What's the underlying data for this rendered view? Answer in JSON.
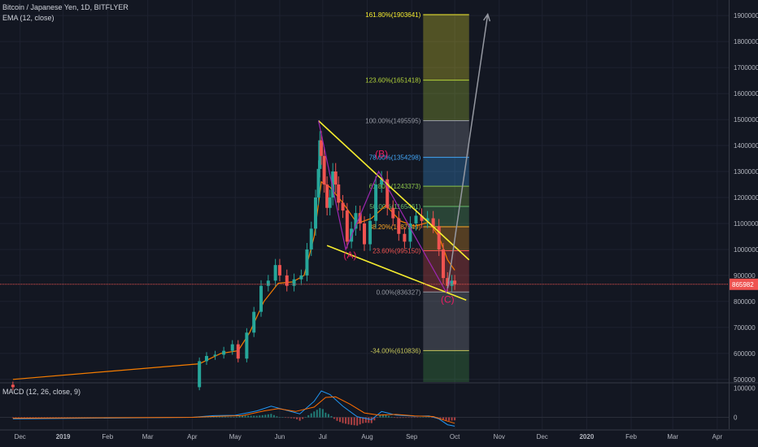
{
  "header": {
    "symbol_line": "Bitcoin / Japanese Yen, 1D, BITFLYER",
    "indicator": "EMA (12, close)",
    "macd_label": "MACD (12, 26, close, 9)"
  },
  "price_axis": {
    "ticks": [
      {
        "value": 1900000,
        "label": "1900000"
      },
      {
        "value": 1800000,
        "label": "1800000"
      },
      {
        "value": 1700000,
        "label": "1700000"
      },
      {
        "value": 1600000,
        "label": "1600000"
      },
      {
        "value": 1500000,
        "label": "1500000"
      },
      {
        "value": 1400000,
        "label": "1400000"
      },
      {
        "value": 1300000,
        "label": "1300000"
      },
      {
        "value": 1200000,
        "label": "1200000"
      },
      {
        "value": 1100000,
        "label": "1100000"
      },
      {
        "value": 1000000,
        "label": "1000000"
      },
      {
        "value": 900000,
        "label": "900000"
      },
      {
        "value": 800000,
        "label": "800000"
      },
      {
        "value": 700000,
        "label": "700000"
      },
      {
        "value": 600000,
        "label": "600000"
      },
      {
        "value": 500000,
        "label": "500000"
      }
    ],
    "last_price": {
      "value": 865982,
      "label": "865982",
      "color": "#ef5350"
    }
  },
  "macd_axis": {
    "ticks": [
      {
        "value": 100000,
        "label": "100000"
      },
      {
        "value": 0,
        "label": "0"
      }
    ]
  },
  "time_axis": [
    {
      "day": -30,
      "label": "Dec",
      "bold": false
    },
    {
      "day": 0,
      "label": "2019",
      "bold": true
    },
    {
      "day": 31,
      "label": "Feb",
      "bold": false
    },
    {
      "day": 59,
      "label": "Mar",
      "bold": false
    },
    {
      "day": 90,
      "label": "Apr",
      "bold": false
    },
    {
      "day": 120,
      "label": "May",
      "bold": false
    },
    {
      "day": 151,
      "label": "Jun",
      "bold": false
    },
    {
      "day": 181,
      "label": "Jul",
      "bold": false
    },
    {
      "day": 212,
      "label": "Aug",
      "bold": false
    },
    {
      "day": 243,
      "label": "Sep",
      "bold": false
    },
    {
      "day": 273,
      "label": "Oct",
      "bold": false
    },
    {
      "day": 304,
      "label": "Nov",
      "bold": false
    },
    {
      "day": 334,
      "label": "Dec",
      "bold": false
    },
    {
      "day": 365,
      "label": "2020",
      "bold": true
    },
    {
      "day": 396,
      "label": "Feb",
      "bold": false
    },
    {
      "day": 425,
      "label": "Mar",
      "bold": false
    },
    {
      "day": 456,
      "label": "Apr",
      "bold": false
    }
  ],
  "colors": {
    "background": "#131722",
    "grid": "#1e2230",
    "up": "#26a69a",
    "down": "#ef5350",
    "ema": "#f57c00",
    "trendline": "#f5ec2e",
    "wave": "#9c27b0",
    "wave_label": "#e91e63",
    "arrow": "#9598a1",
    "macd_line": "#2196f3",
    "signal_line": "#ff6d00"
  },
  "chart_data": {
    "type": "candlestick",
    "x_unit": "days since 2019-01-01",
    "ylim": [
      490000,
      1960000
    ],
    "candles": [
      {
        "day": -35,
        "close": 470000
      },
      {
        "day": 95,
        "close": 570000
      },
      {
        "day": 100,
        "close": 590000
      },
      {
        "day": 106,
        "close": 595000
      },
      {
        "day": 112,
        "close": 610000
      },
      {
        "day": 118,
        "close": 635000
      },
      {
        "day": 122,
        "close": 580000
      },
      {
        "day": 128,
        "close": 680000
      },
      {
        "day": 133,
        "close": 760000
      },
      {
        "day": 138,
        "close": 860000
      },
      {
        "day": 143,
        "close": 880000
      },
      {
        "day": 148,
        "close": 940000
      },
      {
        "day": 151,
        "close": 900000
      },
      {
        "day": 156,
        "close": 860000
      },
      {
        "day": 161,
        "close": 885000
      },
      {
        "day": 166,
        "close": 900000
      },
      {
        "day": 170,
        "close": 1000000
      },
      {
        "day": 173,
        "close": 1080000
      },
      {
        "day": 176,
        "close": 1200000
      },
      {
        "day": 178,
        "close": 1310000
      },
      {
        "day": 179,
        "close": 1420000
      },
      {
        "day": 180,
        "close": 1360000
      },
      {
        "day": 182,
        "close": 1250000
      },
      {
        "day": 184,
        "close": 1160000
      },
      {
        "day": 186,
        "close": 1200000
      },
      {
        "day": 188,
        "close": 1300000
      },
      {
        "day": 190,
        "close": 1250000
      },
      {
        "day": 192,
        "close": 1180000
      },
      {
        "day": 195,
        "close": 1150000
      },
      {
        "day": 198,
        "close": 1030000
      },
      {
        "day": 201,
        "close": 1080000
      },
      {
        "day": 204,
        "close": 1140000
      },
      {
        "day": 207,
        "close": 1100000
      },
      {
        "day": 210,
        "close": 1020000
      },
      {
        "day": 214,
        "close": 1110000
      },
      {
        "day": 218,
        "close": 1250000
      },
      {
        "day": 222,
        "close": 1270000
      },
      {
        "day": 226,
        "close": 1160000
      },
      {
        "day": 230,
        "close": 1120000
      },
      {
        "day": 234,
        "close": 1060000
      },
      {
        "day": 238,
        "close": 1030000
      },
      {
        "day": 242,
        "close": 1100000
      },
      {
        "day": 246,
        "close": 1130000
      },
      {
        "day": 250,
        "close": 1110000
      },
      {
        "day": 254,
        "close": 1120000
      },
      {
        "day": 258,
        "close": 1090000
      },
      {
        "day": 262,
        "close": 1000000
      },
      {
        "day": 265,
        "close": 890000
      },
      {
        "day": 268,
        "close": 860000
      },
      {
        "day": 271,
        "close": 880000
      },
      {
        "day": 273,
        "close": 865982
      }
    ],
    "ema": [
      {
        "day": -35,
        "value": 500000
      },
      {
        "day": 95,
        "value": 560000
      },
      {
        "day": 110,
        "value": 600000
      },
      {
        "day": 122,
        "value": 610000
      },
      {
        "day": 130,
        "value": 680000
      },
      {
        "day": 140,
        "value": 800000
      },
      {
        "day": 150,
        "value": 870000
      },
      {
        "day": 160,
        "value": 875000
      },
      {
        "day": 168,
        "value": 900000
      },
      {
        "day": 175,
        "value": 1050000
      },
      {
        "day": 180,
        "value": 1260000
      },
      {
        "day": 186,
        "value": 1240000
      },
      {
        "day": 195,
        "value": 1180000
      },
      {
        "day": 205,
        "value": 1100000
      },
      {
        "day": 215,
        "value": 1120000
      },
      {
        "day": 225,
        "value": 1170000
      },
      {
        "day": 235,
        "value": 1110000
      },
      {
        "day": 245,
        "value": 1090000
      },
      {
        "day": 255,
        "value": 1105000
      },
      {
        "day": 262,
        "value": 1050000
      },
      {
        "day": 268,
        "value": 960000
      },
      {
        "day": 273,
        "value": 920000
      }
    ],
    "fibonacci": {
      "day_start": 251,
      "day_end": 283,
      "levels": [
        {
          "price": 1903641,
          "label": "161.80%(1903641)",
          "color": "#f5ec2e"
        },
        {
          "price": 1651418,
          "label": "123.60%(1651418)",
          "color": "#b2d33a"
        },
        {
          "price": 1495595,
          "label": "100.00%(1495595)",
          "color": "#9598a1"
        },
        {
          "price": 1354298,
          "label": "78.60%(1354298)",
          "color": "#42a5f5"
        },
        {
          "price": 1243373,
          "label": "61.80%(1243373)",
          "color": "#8bc34a"
        },
        {
          "price": 1165461,
          "label": "50.00%(1165461)",
          "color": "#66bb6a"
        },
        {
          "price": 1087549,
          "label": "38.20%(1087549)",
          "color": "#ffa726"
        },
        {
          "price": 995150,
          "label": "23.60%(995150)",
          "color": "#ef5350"
        },
        {
          "price": 836327,
          "label": "0.00%(836327)",
          "color": "#9598a1"
        },
        {
          "price": 610836,
          "label": "-34.00%(610836)",
          "color": "#c6c65a"
        }
      ]
    },
    "trendlines": [
      {
        "from": {
          "day": 178,
          "price": 1495595
        },
        "to": {
          "day": 283,
          "price": 960000
        }
      },
      {
        "from": {
          "day": 184,
          "price": 1015000
        },
        "to": {
          "day": 281,
          "price": 805000
        }
      }
    ],
    "waves": {
      "points": [
        {
          "day": 178,
          "price": 1495595
        },
        {
          "day": 197,
          "price": 1000000
        },
        {
          "day": 220,
          "price": 1300000
        },
        {
          "day": 267,
          "price": 836327
        },
        {
          "day": 270,
          "price": 880000
        }
      ],
      "labels": [
        {
          "day": 200,
          "price": 965000,
          "text": "(A)"
        },
        {
          "day": 222,
          "price": 1355000,
          "text": "(B)"
        },
        {
          "day": 268,
          "price": 795000,
          "text": "(C)"
        }
      ]
    },
    "projection_arrow": {
      "from": {
        "day": 268,
        "price": 850000
      },
      "to": {
        "day": 296,
        "price": 1905000
      }
    },
    "macd": {
      "ylim": [
        -40000,
        115000
      ],
      "line": [
        {
          "day": -35,
          "value": -5000
        },
        {
          "day": 90,
          "value": 0
        },
        {
          "day": 105,
          "value": 6000
        },
        {
          "day": 120,
          "value": 7000
        },
        {
          "day": 135,
          "value": 22000
        },
        {
          "day": 145,
          "value": 38000
        },
        {
          "day": 155,
          "value": 25000
        },
        {
          "day": 165,
          "value": 12000
        },
        {
          "day": 175,
          "value": 55000
        },
        {
          "day": 180,
          "value": 90000
        },
        {
          "day": 186,
          "value": 78000
        },
        {
          "day": 195,
          "value": 38000
        },
        {
          "day": 205,
          "value": 2000
        },
        {
          "day": 215,
          "value": -8000
        },
        {
          "day": 222,
          "value": 20000
        },
        {
          "day": 232,
          "value": 8000
        },
        {
          "day": 245,
          "value": 4000
        },
        {
          "day": 255,
          "value": 5000
        },
        {
          "day": 262,
          "value": -5000
        },
        {
          "day": 268,
          "value": -25000
        },
        {
          "day": 273,
          "value": -30000
        }
      ],
      "signal": [
        {
          "day": -35,
          "value": -3000
        },
        {
          "day": 90,
          "value": 0
        },
        {
          "day": 110,
          "value": 4000
        },
        {
          "day": 125,
          "value": 6000
        },
        {
          "day": 140,
          "value": 22000
        },
        {
          "day": 150,
          "value": 30000
        },
        {
          "day": 162,
          "value": 20000
        },
        {
          "day": 175,
          "value": 35000
        },
        {
          "day": 183,
          "value": 68000
        },
        {
          "day": 190,
          "value": 70000
        },
        {
          "day": 200,
          "value": 45000
        },
        {
          "day": 210,
          "value": 15000
        },
        {
          "day": 220,
          "value": 8000
        },
        {
          "day": 232,
          "value": 10000
        },
        {
          "day": 245,
          "value": 5000
        },
        {
          "day": 258,
          "value": 3000
        },
        {
          "day": 266,
          "value": -10000
        },
        {
          "day": 273,
          "value": -20000
        }
      ]
    }
  }
}
